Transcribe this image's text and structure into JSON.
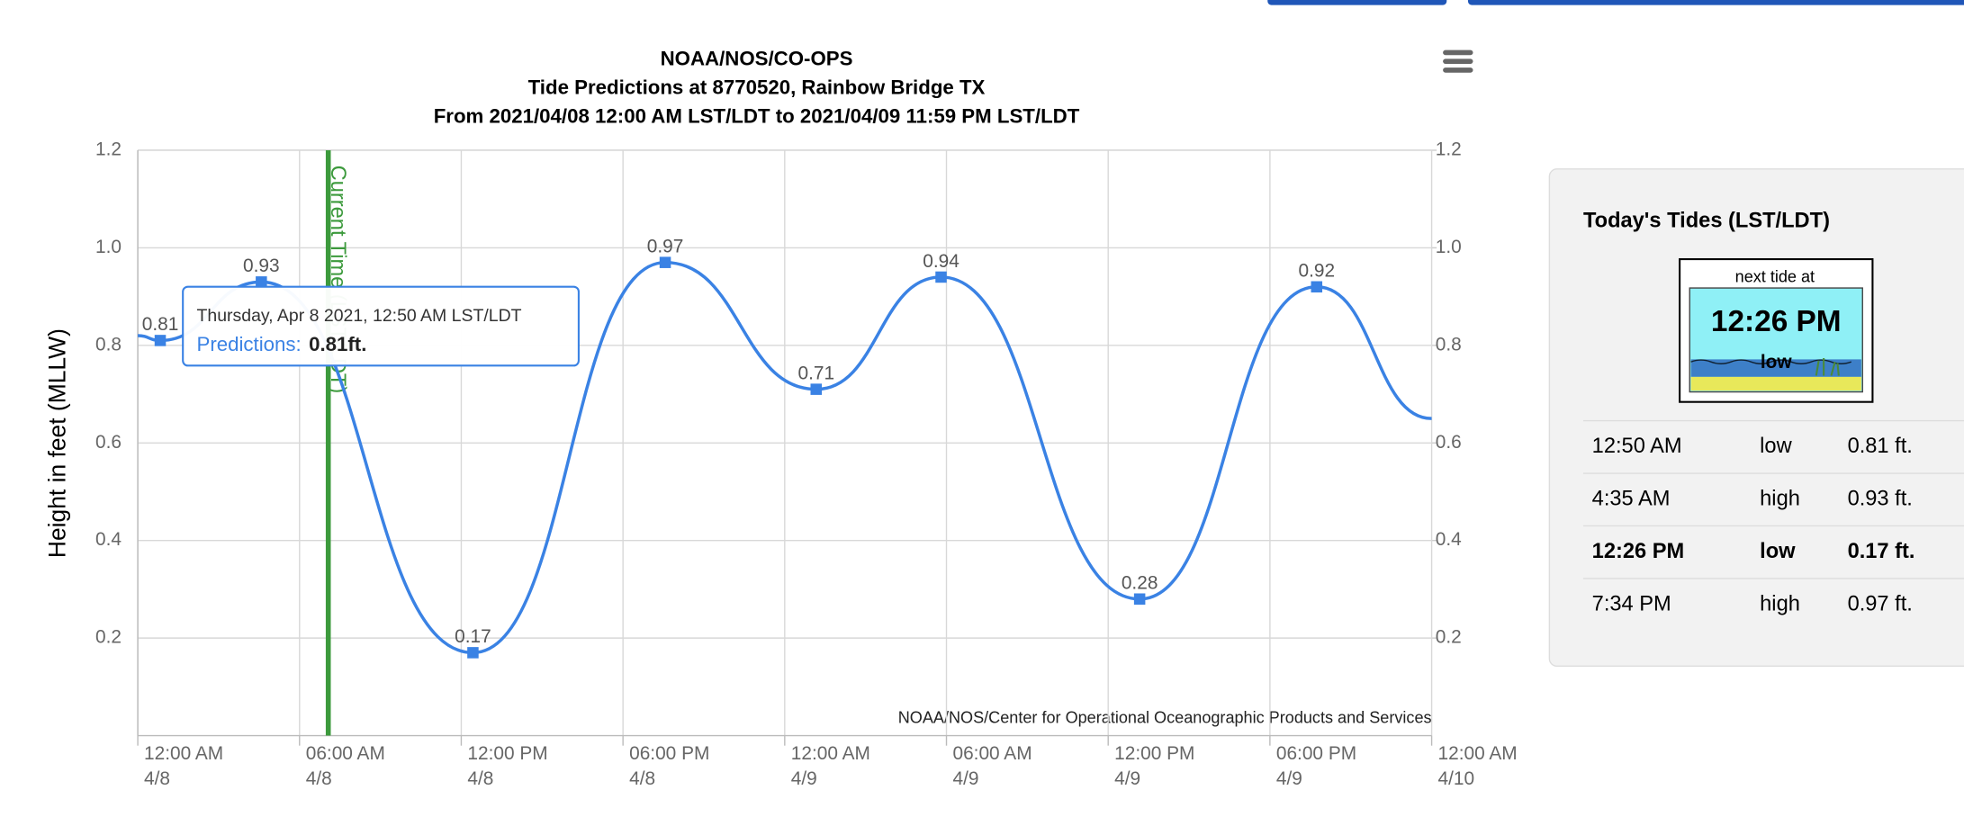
{
  "chart_data": {
    "type": "line",
    "title_lines": [
      "NOAA/NOS/CO-OPS",
      "Tide Predictions at 8770520, Rainbow Bridge TX",
      "From 2021/04/08 12:00 AM LST/LDT to 2021/04/09 11:59 PM LST/LDT"
    ],
    "y_label": "Height in feet (MLLW)",
    "credits": "NOAA/NOS/Center for Operational Oceanographic Products and Services",
    "series": [
      {
        "name": "Predictions",
        "color": "#3a82e4",
        "x": [
          "2021-04-08T00:00",
          "2021-04-08T00:50",
          "2021-04-08T04:35",
          "2021-04-08T12:26",
          "2021-04-08T19:34",
          "2021-04-09T01:10",
          "2021-04-09T05:48",
          "2021-04-09T13:10",
          "2021-04-09T19:44",
          "2021-04-10T00:00"
        ],
        "values": [
          0.82,
          0.81,
          0.93,
          0.17,
          0.97,
          0.71,
          0.94,
          0.28,
          0.92,
          0.65
        ]
      }
    ],
    "xlim": [
      "2021-04-08T00:00",
      "2021-04-10T00:00"
    ],
    "xticks": [
      {
        "value": "2021-04-08T00:00",
        "label": [
          "12:00 AM",
          "4/8"
        ]
      },
      {
        "value": "2021-04-08T06:00",
        "label": [
          "06:00 AM",
          "4/8"
        ]
      },
      {
        "value": "2021-04-08T12:00",
        "label": [
          "12:00 PM",
          "4/8"
        ]
      },
      {
        "value": "2021-04-08T18:00",
        "label": [
          "06:00 PM",
          "4/8"
        ]
      },
      {
        "value": "2021-04-09T00:00",
        "label": [
          "12:00 AM",
          "4/9"
        ]
      },
      {
        "value": "2021-04-09T06:00",
        "label": [
          "06:00 AM",
          "4/9"
        ]
      },
      {
        "value": "2021-04-09T12:00",
        "label": [
          "12:00 PM",
          "4/9"
        ]
      },
      {
        "value": "2021-04-09T18:00",
        "label": [
          "06:00 PM",
          "4/9"
        ]
      },
      {
        "value": "2021-04-10T00:00",
        "label": [
          "12:00 AM",
          "4/10"
        ]
      }
    ],
    "ylim": [
      0,
      1.2
    ],
    "yticks": [
      0.2,
      0.4,
      0.6,
      0.8,
      {
        "value": 1,
        "label": "1.0"
      },
      1.2
    ],
    "y2lim": [
      0,
      1.2
    ],
    "y2ticks": [
      0.2,
      0.4,
      0.6,
      0.8,
      {
        "value": 1,
        "label": "1.0"
      },
      1.2
    ],
    "grid": true,
    "current_time": {
      "x": "2021-04-08T07:04",
      "label": "Current Time (LST/LDT)",
      "color": "#3c9a3c"
    },
    "tooltip": {
      "title": "Thursday, Apr 8 2021, 12:50 AM LST/LDT",
      "series_label": "Predictions:",
      "value": "0.81ft."
    }
  },
  "tides_panel": {
    "title": "Today's Tides (LST/LDT)",
    "next_label": "next tide at",
    "next_time": "12:26 PM",
    "next_type": "low",
    "rows": [
      [
        "12:50 AM",
        "low",
        "0.81 ft."
      ],
      [
        "4:35 AM",
        "high",
        "0.93 ft."
      ],
      [
        "12:26 PM",
        "low",
        "0.17 ft."
      ],
      [
        "7:34 PM",
        "high",
        "0.97 ft."
      ]
    ]
  }
}
